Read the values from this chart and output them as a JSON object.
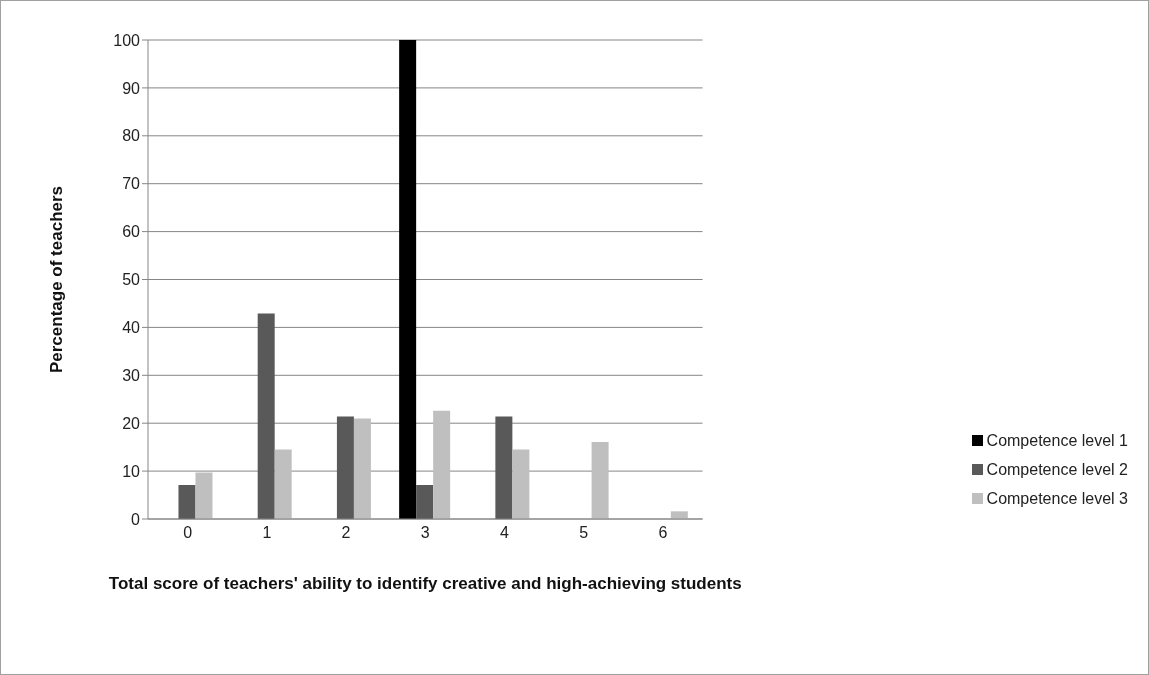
{
  "chart_data": {
    "type": "bar",
    "xlabel": "Total score of teachers' ability to identify creative and high-achieving students",
    "ylabel": "Percentage of teachers",
    "categories": [
      "0",
      "1",
      "2",
      "3",
      "4",
      "5",
      "6"
    ],
    "series": [
      {
        "name": "Competence level 1",
        "color": "#000000",
        "values": [
          0,
          0,
          0,
          100,
          0,
          0,
          0
        ]
      },
      {
        "name": "Competence level 2",
        "color": "#595959",
        "values": [
          7.1,
          42.9,
          21.4,
          7.1,
          21.4,
          0,
          0
        ]
      },
      {
        "name": "Competence level 3",
        "color": "#bfbfbf",
        "values": [
          9.7,
          14.5,
          21.0,
          22.6,
          14.5,
          16.1,
          1.6
        ]
      }
    ],
    "ylim": [
      0,
      100
    ],
    "yticks": [
      0,
      10,
      20,
      30,
      40,
      50,
      60,
      70,
      80,
      90,
      100
    ],
    "grid": "y",
    "legend": "right"
  }
}
